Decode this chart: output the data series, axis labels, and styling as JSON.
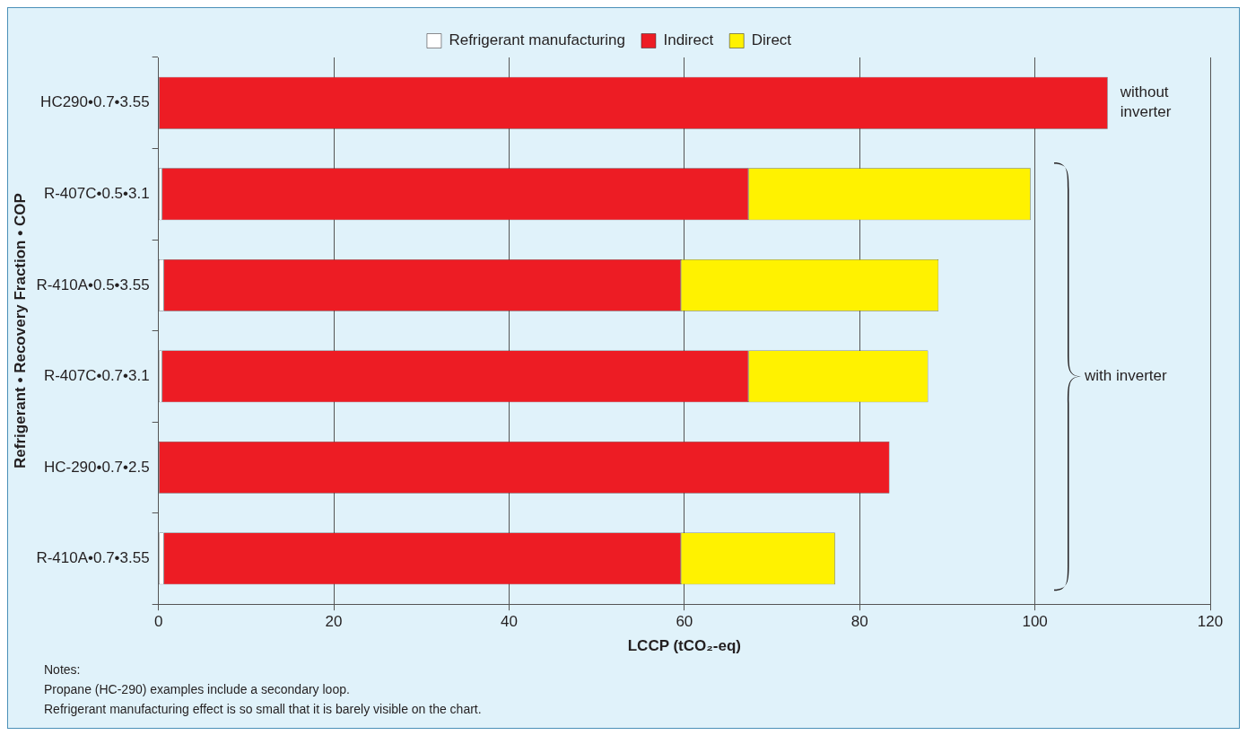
{
  "chart_data": {
    "type": "bar",
    "orientation": "horizontal",
    "stacked": true,
    "categories": [
      "HC290•0.7•3.55",
      "R-407C•0.5•3.1",
      "R-410A•0.5•3.55",
      "R-407C•0.7•3.1",
      "HC-290•0.7•2.5",
      "R-410A•0.7•3.55"
    ],
    "series": [
      {
        "name": "Refrigerant manufacturing",
        "color": "#ffffff",
        "values": [
          null,
          0.4,
          0.6,
          0.4,
          null,
          0.6
        ]
      },
      {
        "name": "Indirect",
        "color": "#ed1c24",
        "values": [
          108.3,
          66.9,
          59.0,
          66.9,
          83.4,
          59.0
        ]
      },
      {
        "name": "Direct",
        "color": "#fff200",
        "values": [
          null,
          32.2,
          29.4,
          20.5,
          null,
          17.6
        ]
      }
    ],
    "xlim": [
      0,
      120
    ],
    "xticks": [
      0,
      20,
      40,
      60,
      80,
      100,
      120
    ],
    "xlabel": "LCCP (tCO₂-eq)",
    "ylabel": "Refrigerant • Recovery Fraction • COP",
    "grid": "x",
    "legend": "top",
    "annotations": [
      "without inverter",
      "with inverter",
      "Notes:",
      "Propane (HC-290) examples include a secondary loop.",
      "Refrigerant manufacturing effect is so small that it is barely visible on the chart."
    ]
  }
}
